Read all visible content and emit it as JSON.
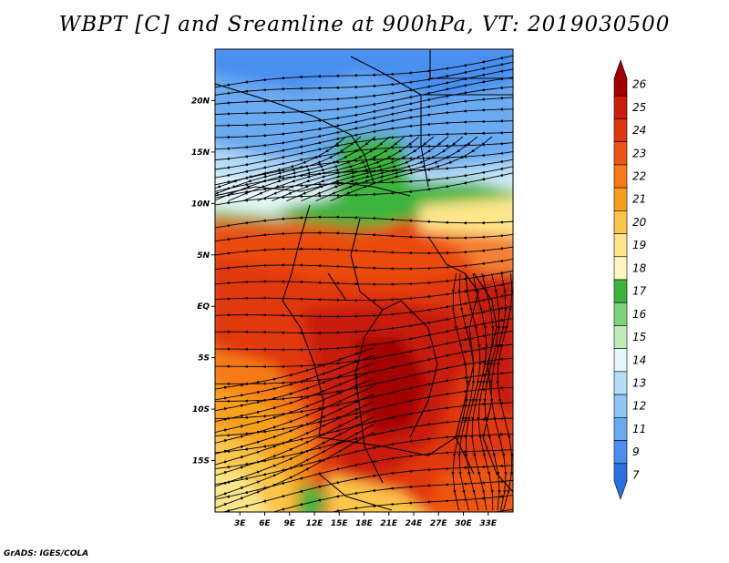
{
  "title": "WBPT [C] and Sreamline at 900hPa, VT: 2019030500",
  "credit": "GrADS: IGES/COLA",
  "map": {
    "lon_range": [
      0,
      36
    ],
    "lat_range": [
      -20,
      25
    ],
    "lat_ticks": [
      "20N",
      "15N",
      "10N",
      "5N",
      "EQ",
      "5S",
      "10S",
      "15S"
    ],
    "lon_ticks": [
      "3E",
      "6E",
      "9E",
      "12E",
      "15E",
      "18E",
      "21E",
      "24E",
      "27E",
      "30E",
      "33E"
    ]
  },
  "colorbar": {
    "labels": [
      "26",
      "25",
      "24",
      "23",
      "22",
      "21",
      "20",
      "19",
      "18",
      "17",
      "16",
      "15",
      "14",
      "13",
      "12",
      "11",
      "9",
      "7"
    ],
    "colors": [
      "#a50000",
      "#c81e0a",
      "#e1370f",
      "#ee5511",
      "#f57a15",
      "#f7a01e",
      "#fbc64a",
      "#fde68a",
      "#fcf6c4",
      "#3cb43c",
      "#7cd47a",
      "#bfeeba",
      "#e5f7fa",
      "#b4dcf7",
      "#91c6f2",
      "#6aaaf0",
      "#4a8ff0",
      "#2b6fe0"
    ]
  }
}
